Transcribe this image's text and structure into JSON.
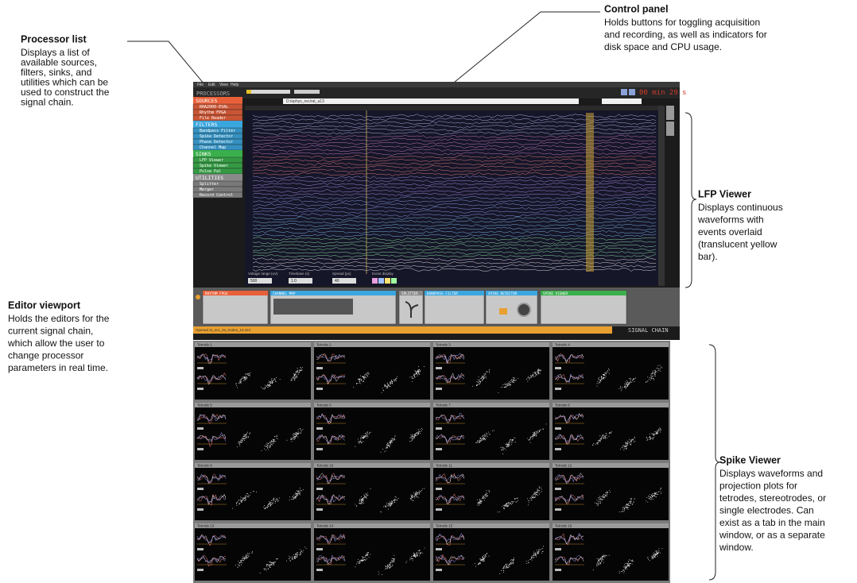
{
  "annotations": [
    {
      "title": "Processor list",
      "lines": [
        "Displays a list of",
        "available sources,",
        "filters, sinks, and",
        "utilities which can be",
        "used to construct the",
        "signal chain."
      ]
    },
    {
      "title": "Control panel",
      "lines": [
        "Holds buttons for toggling acquisition",
        "and recording, as well as indicators for",
        "disk space and CPU usage."
      ]
    },
    {
      "title": "LFP Viewer",
      "lines": [
        "Displays continuous",
        "waveforms with",
        "events overlaid",
        "(translucent yellow",
        "bar)."
      ]
    },
    {
      "title": "Editor viewport",
      "lines": [
        "Holds the editors for the",
        "current signal chain,",
        "which allow the user to",
        "change processor",
        "parameters in real time."
      ]
    },
    {
      "title": "Spike Viewer",
      "lines": [
        "Displays waveforms and",
        "projection plots for",
        "tetrodes, stereotrodes, or",
        "single electrodes. Can",
        "exist as a tab in the main",
        "window, or as a separate",
        "window."
      ]
    }
  ],
  "app": {
    "menu": [
      "File",
      "Edit",
      "View",
      "Help"
    ],
    "clock": "00 min 29 s",
    "path": "D:/ephys_rec/rat_a13",
    "processor_list": {
      "title": "PROCESSORS",
      "groups": [
        {
          "name": "SOURCES",
          "color": "#e8603a",
          "items": [
            "RHA2000-EVAL",
            "Rhythm FPGA",
            "File Reader"
          ]
        },
        {
          "name": "FILTERS",
          "color": "#3aa6de",
          "items": [
            "Bandpass Filter",
            "Spike Detector",
            "Phase Detector",
            "Channel Map"
          ]
        },
        {
          "name": "SINKS",
          "color": "#3aaf4c",
          "items": [
            "LFP Viewer",
            "Spike Viewer",
            "Pulse Pal"
          ]
        },
        {
          "name": "UTILITIES",
          "color": "#8a8a8a",
          "items": [
            "Splitter",
            "Merger",
            "Record Control"
          ]
        }
      ]
    },
    "lfp_controls": [
      {
        "label": "Voltage range (uV)",
        "value": "500"
      },
      {
        "label": "Timebase (s)",
        "value": "1.0"
      },
      {
        "label": "Spread (px)",
        "value": "40"
      },
      {
        "label": "Event display"
      }
    ],
    "editors": [
      {
        "name": "RHYTHM FPGA",
        "color": "#e8603a"
      },
      {
        "name": "CHANNEL MAP",
        "color": "#3aa6de"
      },
      {
        "name": "SPLITTER",
        "color": "#8a8a8a"
      },
      {
        "name": "BANDPASS FILTER",
        "color": "#3aa6de"
      },
      {
        "name": "SPIKE DETECTOR",
        "color": "#3aa6de"
      },
      {
        "name": "SPIKE VIEWER",
        "color": "#3aaf4c"
      }
    ],
    "status": "Opened 4t_ac1_6s_trodes_10.xml",
    "signal_chain": "SIGNAL CHAIN",
    "tetrodes": [
      "Tetrode 1",
      "Tetrode 2",
      "Tetrode 3",
      "Tetrode 4",
      "Tetrode 5",
      "Tetrode 6",
      "Tetrode 7",
      "Tetrode 8",
      "Tetrode 9",
      "Tetrode 10",
      "Tetrode 11",
      "Tetrode 12",
      "Tetrode 13",
      "Tetrode 14",
      "Tetrode 15",
      "Tetrode 16"
    ]
  }
}
